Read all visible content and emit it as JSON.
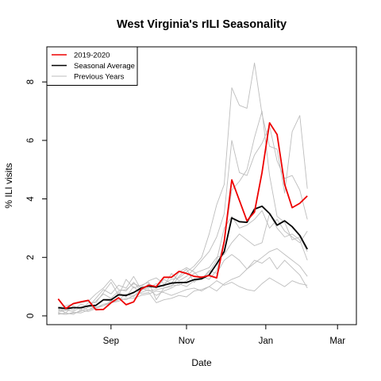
{
  "chart_data": {
    "type": "line",
    "title": "West Virginia's rILI Seasonality",
    "xlabel": "Date",
    "ylabel": "% ILI visits",
    "x_ticks": [
      {
        "label": "Sep",
        "week": 8
      },
      {
        "label": "Nov",
        "week": 18
      },
      {
        "label": "Jan",
        "week": 28.5
      },
      {
        "label": "Mar",
        "week": 38
      }
    ],
    "y_ticks": [
      0,
      2,
      4,
      6,
      8
    ],
    "xlim": [
      -0.5,
      40.5
    ],
    "ylim": [
      -0.3,
      9.2
    ],
    "grid": false,
    "legend_position": "top-left",
    "x": [
      1,
      2,
      3,
      4,
      5,
      6,
      7,
      8,
      9,
      10,
      11,
      12,
      13,
      14,
      15,
      16,
      17,
      18,
      19,
      20,
      21,
      22,
      23,
      24,
      25,
      26,
      27,
      28,
      29,
      30,
      31,
      32,
      33,
      34,
      35,
      36,
      37,
      38,
      39,
      40
    ],
    "series": [
      {
        "name": "2019-2020",
        "color": "#ee0000",
        "width": 1.8,
        "role": "current",
        "values": [
          0.58,
          0.25,
          0.42,
          0.48,
          0.53,
          0.21,
          0.22,
          0.45,
          0.62,
          0.38,
          0.48,
          0.92,
          1.05,
          1.0,
          1.32,
          1.32,
          1.52,
          1.45,
          1.35,
          1.32,
          1.38,
          1.3,
          2.55,
          4.65,
          3.95,
          3.25,
          3.55,
          4.9,
          6.6,
          6.2,
          4.5,
          3.7,
          3.85,
          4.1,
          null,
          null,
          null,
          null,
          null,
          null
        ]
      },
      {
        "name": "Seasonal Average",
        "color": "#000000",
        "width": 1.8,
        "role": "average",
        "values": [
          0.28,
          0.25,
          0.28,
          0.28,
          0.34,
          0.36,
          0.55,
          0.55,
          0.72,
          0.7,
          0.8,
          0.95,
          1.02,
          0.98,
          1.05,
          1.12,
          1.14,
          1.14,
          1.24,
          1.27,
          1.4,
          1.78,
          2.2,
          3.35,
          3.22,
          3.2,
          3.65,
          3.75,
          3.5,
          3.1,
          3.25,
          3.05,
          2.75,
          2.28,
          null,
          null,
          null,
          null,
          null,
          null
        ]
      },
      {
        "name": "Previous Years",
        "color": "#bdbdbd",
        "width": 0.9,
        "role": "previous",
        "values": [
          0.2,
          0.18,
          0.3,
          0.25,
          0.35,
          0.5,
          0.75,
          0.6,
          0.85,
          0.9,
          1.1,
          1.0,
          1.2,
          1.3,
          1.1,
          1.25,
          1.3,
          1.5,
          1.7,
          2.0,
          2.8,
          3.8,
          4.5,
          7.8,
          7.2,
          7.1,
          8.65,
          6.9,
          5.8,
          5.7,
          4.2,
          6.3,
          6.85,
          4.35,
          null,
          null,
          null,
          null,
          null,
          null
        ]
      },
      {
        "name": "",
        "color": "#bdbdbd",
        "width": 0.9,
        "role": "previous",
        "values": [
          0.15,
          0.3,
          0.2,
          0.4,
          0.3,
          0.6,
          0.9,
          0.75,
          1.05,
          0.95,
          1.35,
          0.9,
          0.95,
          1.1,
          1.0,
          1.45,
          1.2,
          1.35,
          1.6,
          1.9,
          2.2,
          2.7,
          3.5,
          6.0,
          4.9,
          4.8,
          5.5,
          5.9,
          6.5,
          5.3,
          4.7,
          4.8,
          4.3,
          3.3,
          null,
          null,
          null,
          null,
          null,
          null
        ]
      },
      {
        "name": "",
        "color": "#bdbdbd",
        "width": 0.9,
        "role": "previous",
        "values": [
          0.25,
          0.1,
          0.35,
          0.2,
          0.45,
          0.45,
          0.8,
          1.15,
          0.7,
          1.25,
          0.95,
          1.05,
          1.15,
          0.55,
          0.95,
          1.0,
          1.35,
          1.6,
          1.15,
          1.35,
          1.25,
          1.55,
          2.6,
          4.3,
          4.6,
          5.0,
          6.1,
          7.0,
          4.8,
          3.4,
          3.2,
          2.6,
          2.7,
          2.2,
          null,
          null,
          null,
          null,
          null,
          null
        ]
      },
      {
        "name": "",
        "color": "#bdbdbd",
        "width": 0.9,
        "role": "previous",
        "values": [
          0.3,
          0.35,
          0.4,
          0.45,
          0.5,
          0.75,
          0.95,
          1.25,
          0.9,
          0.85,
          1.15,
          0.85,
          1.1,
          0.95,
          1.25,
          1.1,
          1.5,
          1.65,
          1.5,
          1.25,
          1.5,
          1.9,
          3.0,
          3.4,
          3.0,
          3.1,
          3.3,
          3.6,
          3.0,
          3.3,
          2.9,
          2.7,
          2.5,
          2.9,
          null,
          null,
          null,
          null,
          null,
          null
        ]
      },
      {
        "name": "",
        "color": "#bdbdbd",
        "width": 0.9,
        "role": "previous",
        "values": [
          0.1,
          0.05,
          0.1,
          0.15,
          0.3,
          0.3,
          0.35,
          0.45,
          0.55,
          0.75,
          0.65,
          0.95,
          0.85,
          0.9,
          0.95,
          1.05,
          1.05,
          1.2,
          1.45,
          1.55,
          1.65,
          2.0,
          2.1,
          2.5,
          2.8,
          2.6,
          2.4,
          2.5,
          3.5,
          3.0,
          2.7,
          2.8,
          2.6,
          1.9,
          null,
          null,
          null,
          null,
          null,
          null
        ]
      },
      {
        "name": "",
        "color": "#bdbdbd",
        "width": 0.9,
        "role": "previous",
        "values": [
          0.05,
          0.1,
          0.05,
          0.2,
          0.15,
          0.25,
          0.35,
          0.5,
          0.6,
          0.55,
          0.7,
          0.8,
          0.9,
          0.7,
          0.85,
          0.95,
          1.1,
          1.0,
          1.2,
          1.25,
          1.55,
          1.45,
          1.9,
          2.1,
          1.9,
          1.6,
          1.8,
          2.0,
          2.2,
          2.3,
          2.1,
          1.9,
          1.7,
          1.35,
          null,
          null,
          null,
          null,
          null,
          null
        ]
      },
      {
        "name": "",
        "color": "#bdbdbd",
        "width": 0.9,
        "role": "previous",
        "values": [
          0.12,
          0.2,
          0.15,
          0.3,
          0.2,
          0.35,
          0.55,
          0.5,
          0.8,
          0.65,
          1.0,
          0.75,
          0.8,
          0.45,
          0.55,
          0.6,
          0.7,
          0.65,
          0.85,
          0.9,
          1.0,
          0.85,
          1.1,
          1.25,
          1.35,
          1.6,
          1.9,
          1.8,
          2.0,
          1.6,
          1.9,
          1.65,
          1.4,
          0.95,
          null,
          null,
          null,
          null,
          null,
          null
        ]
      },
      {
        "name": "",
        "color": "#bdbdbd",
        "width": 0.9,
        "role": "previous",
        "values": [
          0.08,
          0.05,
          0.12,
          0.1,
          0.2,
          0.28,
          0.4,
          0.45,
          0.5,
          0.6,
          0.6,
          0.7,
          0.75,
          0.85,
          0.8,
          0.7,
          0.8,
          0.9,
          0.95,
          0.85,
          1.0,
          1.2,
          1.05,
          1.15,
          1.0,
          0.9,
          0.85,
          1.1,
          1.3,
          1.15,
          1.0,
          1.2,
          1.1,
          1.05,
          null,
          null,
          null,
          null,
          null,
          null
        ]
      }
    ]
  }
}
